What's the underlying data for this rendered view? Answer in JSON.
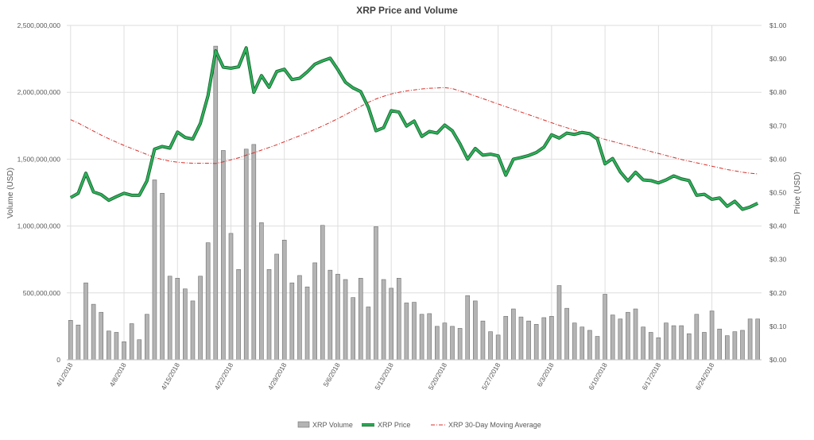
{
  "colors": {
    "volume_fill": "#b4b4b4",
    "volume_stroke": "#6e6e6e",
    "price_line": "#2bb35a",
    "price_outline": "#1e5a2e",
    "moving_average": "#d9302a",
    "grid": "#dedede",
    "text": "#595959"
  },
  "chart_data": {
    "type": "bar+line",
    "title": "XRP Price and Volume",
    "ylabel_left": "Volume (USD)",
    "ylabel_right": "Price (USD)",
    "y_left_lim": [
      0,
      2500000000
    ],
    "y_left_ticks": [
      "0",
      "500,000,000",
      "1,000,000,000",
      "1,500,000,000",
      "2,000,000,000",
      "2,500,000,000"
    ],
    "y_right_lim": [
      0,
      1.0
    ],
    "y_right_ticks": [
      "$0.00",
      "$0.10",
      "$0.20",
      "$0.30",
      "$0.40",
      "$0.50",
      "$0.60",
      "$0.70",
      "$0.80",
      "$0.90",
      "$1.00"
    ],
    "x_tick_labels": [
      "4/1/2018",
      "4/8/2018",
      "4/15/2018",
      "4/22/2018",
      "4/29/2018",
      "5/6/2018",
      "5/13/2018",
      "5/20/2018",
      "5/27/2018",
      "6/3/2018",
      "6/10/2018",
      "6/17/2018",
      "6/24/2018"
    ],
    "x_start": "2018-04-01",
    "x_end": "2018-06-30",
    "grid": true,
    "legend_position": "bottom",
    "legend": [
      "XRP Volume",
      "XRP Price",
      "XRP 30-Day Moving Average"
    ],
    "series": [
      {
        "name": "XRP Volume",
        "type": "bar",
        "axis": "left",
        "values": [
          295000000,
          260000000,
          575000000,
          415000000,
          355000000,
          215000000,
          205000000,
          135000000,
          270000000,
          150000000,
          340000000,
          1345000000,
          1245000000,
          625000000,
          610000000,
          530000000,
          440000000,
          625000000,
          875000000,
          2345000000,
          1565000000,
          945000000,
          675000000,
          1575000000,
          1610000000,
          1025000000,
          675000000,
          790000000,
          895000000,
          575000000,
          630000000,
          545000000,
          725000000,
          1005000000,
          670000000,
          640000000,
          600000000,
          465000000,
          610000000,
          395000000,
          995000000,
          600000000,
          535000000,
          610000000,
          425000000,
          430000000,
          340000000,
          345000000,
          250000000,
          275000000,
          250000000,
          235000000,
          480000000,
          440000000,
          290000000,
          210000000,
          185000000,
          325000000,
          380000000,
          320000000,
          290000000,
          265000000,
          315000000,
          325000000,
          555000000,
          385000000,
          275000000,
          245000000,
          220000000,
          175000000,
          490000000,
          335000000,
          305000000,
          355000000,
          380000000,
          245000000,
          205000000,
          165000000,
          275000000,
          255000000,
          255000000,
          195000000,
          340000000,
          205000000,
          365000000,
          230000000,
          180000000,
          210000000,
          220000000,
          305000000,
          305000000
        ]
      },
      {
        "name": "XRP Price",
        "type": "line",
        "axis": "right",
        "values": [
          0.485,
          0.498,
          0.558,
          0.502,
          0.494,
          0.477,
          0.488,
          0.498,
          0.492,
          0.492,
          0.535,
          0.63,
          0.638,
          0.633,
          0.681,
          0.665,
          0.66,
          0.707,
          0.79,
          0.924,
          0.875,
          0.872,
          0.876,
          0.933,
          0.8,
          0.85,
          0.815,
          0.862,
          0.869,
          0.838,
          0.842,
          0.861,
          0.884,
          0.894,
          0.902,
          0.868,
          0.83,
          0.813,
          0.802,
          0.755,
          0.685,
          0.694,
          0.745,
          0.741,
          0.699,
          0.714,
          0.668,
          0.683,
          0.678,
          0.702,
          0.685,
          0.646,
          0.6,
          0.632,
          0.612,
          0.615,
          0.61,
          0.552,
          0.6,
          0.605,
          0.611,
          0.62,
          0.636,
          0.673,
          0.663,
          0.678,
          0.674,
          0.68,
          0.676,
          0.66,
          0.586,
          0.602,
          0.562,
          0.535,
          0.561,
          0.538,
          0.536,
          0.529,
          0.538,
          0.55,
          0.541,
          0.536,
          0.492,
          0.495,
          0.48,
          0.484,
          0.459,
          0.474,
          0.45,
          0.457,
          0.468
        ]
      },
      {
        "name": "XRP 30-Day Moving Average",
        "type": "line",
        "axis": "right",
        "style": "dash-dot",
        "values": [
          0.718,
          0.708,
          0.696,
          0.684,
          0.672,
          0.661,
          0.651,
          0.641,
          0.632,
          0.623,
          0.614,
          0.605,
          0.599,
          0.594,
          0.591,
          0.589,
          0.588,
          0.588,
          0.588,
          0.587,
          0.592,
          0.598,
          0.604,
          0.612,
          0.619,
          0.627,
          0.635,
          0.643,
          0.652,
          0.661,
          0.67,
          0.679,
          0.689,
          0.699,
          0.71,
          0.721,
          0.733,
          0.745,
          0.758,
          0.77,
          0.78,
          0.788,
          0.795,
          0.8,
          0.804,
          0.807,
          0.81,
          0.812,
          0.813,
          0.814,
          0.811,
          0.804,
          0.797,
          0.789,
          0.781,
          0.773,
          0.765,
          0.757,
          0.749,
          0.741,
          0.733,
          0.725,
          0.717,
          0.709,
          0.701,
          0.694,
          0.687,
          0.68,
          0.673,
          0.666,
          0.659,
          0.653,
          0.647,
          0.641,
          0.635,
          0.629,
          0.623,
          0.617,
          0.611,
          0.605,
          0.599,
          0.594,
          0.589,
          0.584,
          0.579,
          0.574,
          0.569,
          0.565,
          0.561,
          0.558,
          0.556
        ]
      }
    ]
  }
}
